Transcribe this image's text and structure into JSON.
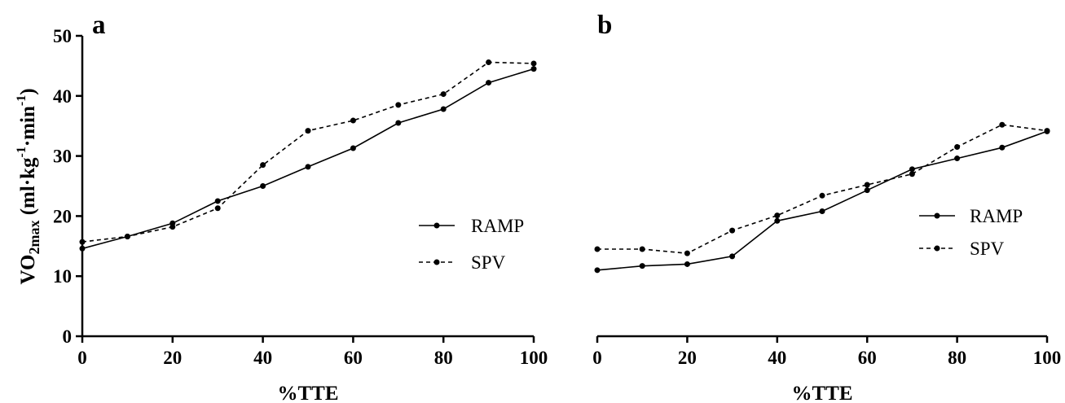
{
  "chart_data": [
    {
      "type": "line",
      "panel_label": "a",
      "xlabel": "%TTE",
      "ylabel_main": "VO",
      "ylabel_sub": "2max",
      "ylabel_rest": " (ml·kg",
      "ylabel_sup1": "-1",
      "ylabel_mid": "·min",
      "ylabel_sup2": "-1",
      "ylabel_end": ")",
      "xlim": [
        0,
        100
      ],
      "ylim": [
        0,
        50
      ],
      "xticks": [
        0,
        20,
        40,
        60,
        80,
        100
      ],
      "yticks": [
        0,
        10,
        20,
        30,
        40,
        50
      ],
      "legend_position": "middle-right",
      "x": [
        0,
        10,
        20,
        30,
        40,
        50,
        60,
        70,
        80,
        90,
        100
      ],
      "series": [
        {
          "name": "RAMP",
          "style": "solid",
          "values": [
            14.6,
            16.6,
            18.8,
            22.5,
            25.0,
            28.2,
            31.3,
            35.5,
            37.8,
            42.2,
            44.5
          ]
        },
        {
          "name": "SPV",
          "style": "dashed",
          "values": [
            15.7,
            16.6,
            18.2,
            21.3,
            28.5,
            34.2,
            35.9,
            38.5,
            40.3,
            45.6,
            45.4
          ]
        }
      ]
    },
    {
      "type": "line",
      "panel_label": "b",
      "xlabel": "%TTE",
      "xlim": [
        0,
        100
      ],
      "ylim": [
        0,
        50
      ],
      "xticks": [
        0,
        20,
        40,
        60,
        80,
        100
      ],
      "legend_position": "middle-right",
      "x": [
        0,
        10,
        20,
        30,
        40,
        50,
        60,
        70,
        80,
        90,
        100
      ],
      "series": [
        {
          "name": "RAMP",
          "style": "solid",
          "values": [
            11.0,
            11.7,
            12.0,
            13.3,
            19.2,
            20.8,
            24.3,
            27.8,
            29.6,
            31.4,
            34.1
          ]
        },
        {
          "name": "SPV",
          "style": "dashed",
          "values": [
            14.5,
            14.5,
            13.8,
            17.6,
            20.1,
            23.4,
            25.2,
            27.0,
            31.5,
            35.2,
            34.2
          ]
        }
      ]
    }
  ]
}
